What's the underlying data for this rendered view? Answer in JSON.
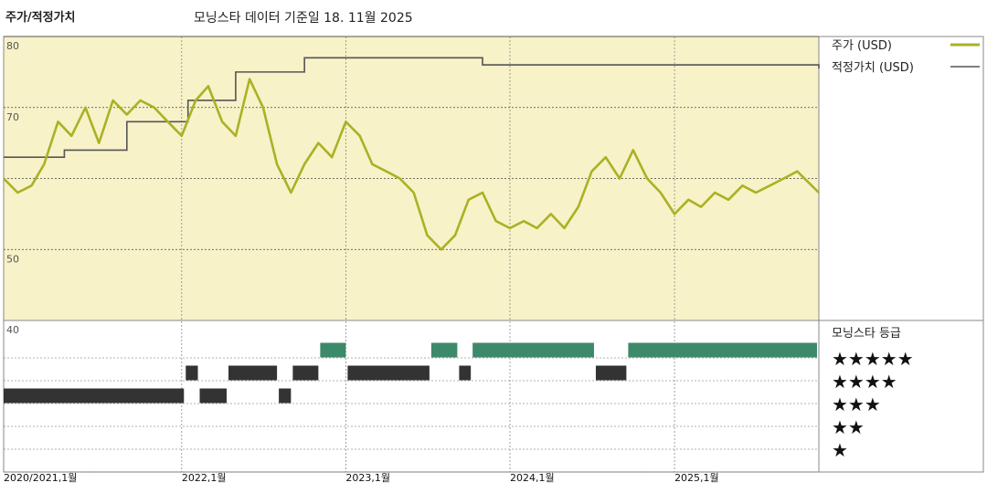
{
  "header": {
    "title": "주가/적정가치",
    "subtitle": "모닝스타 데이터 기준일 18. 11월 2025"
  },
  "legend": {
    "price_label": "주가 (USD)",
    "fair_value_label": "적정가치 (USD)",
    "rating_title": "모닝스타 등급",
    "stars": [
      "★★★★★",
      "★★★★",
      "★★★",
      "★★",
      "★"
    ]
  },
  "colors": {
    "price_line": "#a9b224",
    "fair_value_line": "#555555",
    "plot_bg": "#f7f2c8",
    "five_star": "#3d8a6a",
    "lower_star": "#333333"
  },
  "chart_data": [
    {
      "type": "line",
      "title": "주가/적정가치",
      "ylim": [
        40,
        80
      ],
      "y_ticks": [
        50,
        60,
        70,
        80
      ],
      "y_tick_labels": [
        "50",
        "",
        "70",
        "80"
      ],
      "x_range": [
        "2020-12-01",
        "2025-11-18"
      ],
      "x_tick_labels": [
        "2020/2021,1월",
        "2022,1월",
        "2023,1월",
        "2024,1월",
        "2025,1월"
      ],
      "x_tick_dates": [
        "2020-12-01",
        "2022-01-01",
        "2023-01-01",
        "2024-01-01",
        "2025-01-01"
      ],
      "grid": true,
      "legend_position": "right",
      "series": [
        {
          "name": "주가 (USD)",
          "x": [
            "2020-12-01",
            "2021-01-01",
            "2021-02-01",
            "2021-03-01",
            "2021-04-01",
            "2021-05-01",
            "2021-06-01",
            "2021-07-01",
            "2021-08-01",
            "2021-09-01",
            "2021-10-01",
            "2021-11-01",
            "2021-12-01",
            "2022-01-01",
            "2022-02-01",
            "2022-03-01",
            "2022-04-01",
            "2022-05-01",
            "2022-06-01",
            "2022-07-01",
            "2022-08-01",
            "2022-09-01",
            "2022-10-01",
            "2022-11-01",
            "2022-12-01",
            "2023-01-01",
            "2023-02-01",
            "2023-03-01",
            "2023-04-01",
            "2023-05-01",
            "2023-06-01",
            "2023-07-01",
            "2023-08-01",
            "2023-09-01",
            "2023-10-01",
            "2023-11-01",
            "2023-12-01",
            "2024-01-01",
            "2024-02-01",
            "2024-03-01",
            "2024-04-01",
            "2024-05-01",
            "2024-06-01",
            "2024-07-01",
            "2024-08-01",
            "2024-09-01",
            "2024-10-01",
            "2024-11-01",
            "2024-12-01",
            "2025-01-01",
            "2025-02-01",
            "2025-03-01",
            "2025-04-01",
            "2025-05-01",
            "2025-06-01",
            "2025-07-01",
            "2025-08-01",
            "2025-09-01",
            "2025-10-01",
            "2025-11-18"
          ],
          "values": [
            60,
            58,
            59,
            62,
            68,
            66,
            70,
            65,
            71,
            69,
            71,
            70,
            68,
            66,
            71,
            73,
            68,
            66,
            74,
            70,
            62,
            58,
            62,
            65,
            63,
            68,
            66,
            62,
            61,
            60,
            58,
            52,
            50,
            52,
            57,
            58,
            54,
            53,
            54,
            53,
            55,
            53,
            56,
            61,
            63,
            60,
            64,
            60,
            58,
            55,
            57,
            56,
            58,
            57,
            59,
            58,
            59,
            60,
            61,
            58
          ]
        },
        {
          "name": "적정가치 (USD)",
          "step": true,
          "x": [
            "2020-12-01",
            "2021-04-15",
            "2021-09-01",
            "2022-01-15",
            "2022-05-01",
            "2022-10-01",
            "2023-03-01",
            "2023-11-01",
            "2025-11-18"
          ],
          "values": [
            63,
            64,
            68,
            71,
            75,
            77,
            77,
            76,
            75.5
          ]
        }
      ]
    },
    {
      "type": "rating-timeline",
      "title": "모닝스타 등급",
      "levels": [
        5,
        4,
        3,
        2,
        1
      ],
      "periods": [
        {
          "start": "2020-12-01",
          "end": "2022-01-10",
          "stars": 3
        },
        {
          "start": "2022-01-10",
          "end": "2022-02-10",
          "stars": 4
        },
        {
          "start": "2022-02-10",
          "end": "2022-04-15",
          "stars": 3
        },
        {
          "start": "2022-04-15",
          "end": "2022-08-05",
          "stars": 4
        },
        {
          "start": "2022-08-05",
          "end": "2022-09-05",
          "stars": 3
        },
        {
          "start": "2022-09-05",
          "end": "2022-11-05",
          "stars": 4
        },
        {
          "start": "2022-11-05",
          "end": "2023-01-05",
          "stars": 5
        },
        {
          "start": "2023-01-05",
          "end": "2023-07-10",
          "stars": 4
        },
        {
          "start": "2023-07-10",
          "end": "2023-09-10",
          "stars": 5
        },
        {
          "start": "2023-09-10",
          "end": "2023-10-10",
          "stars": 4
        },
        {
          "start": "2023-10-10",
          "end": "2024-07-10",
          "stars": 5
        },
        {
          "start": "2024-07-10",
          "end": "2024-09-20",
          "stars": 4
        },
        {
          "start": "2024-09-20",
          "end": "2025-11-18",
          "stars": 5
        }
      ]
    }
  ]
}
